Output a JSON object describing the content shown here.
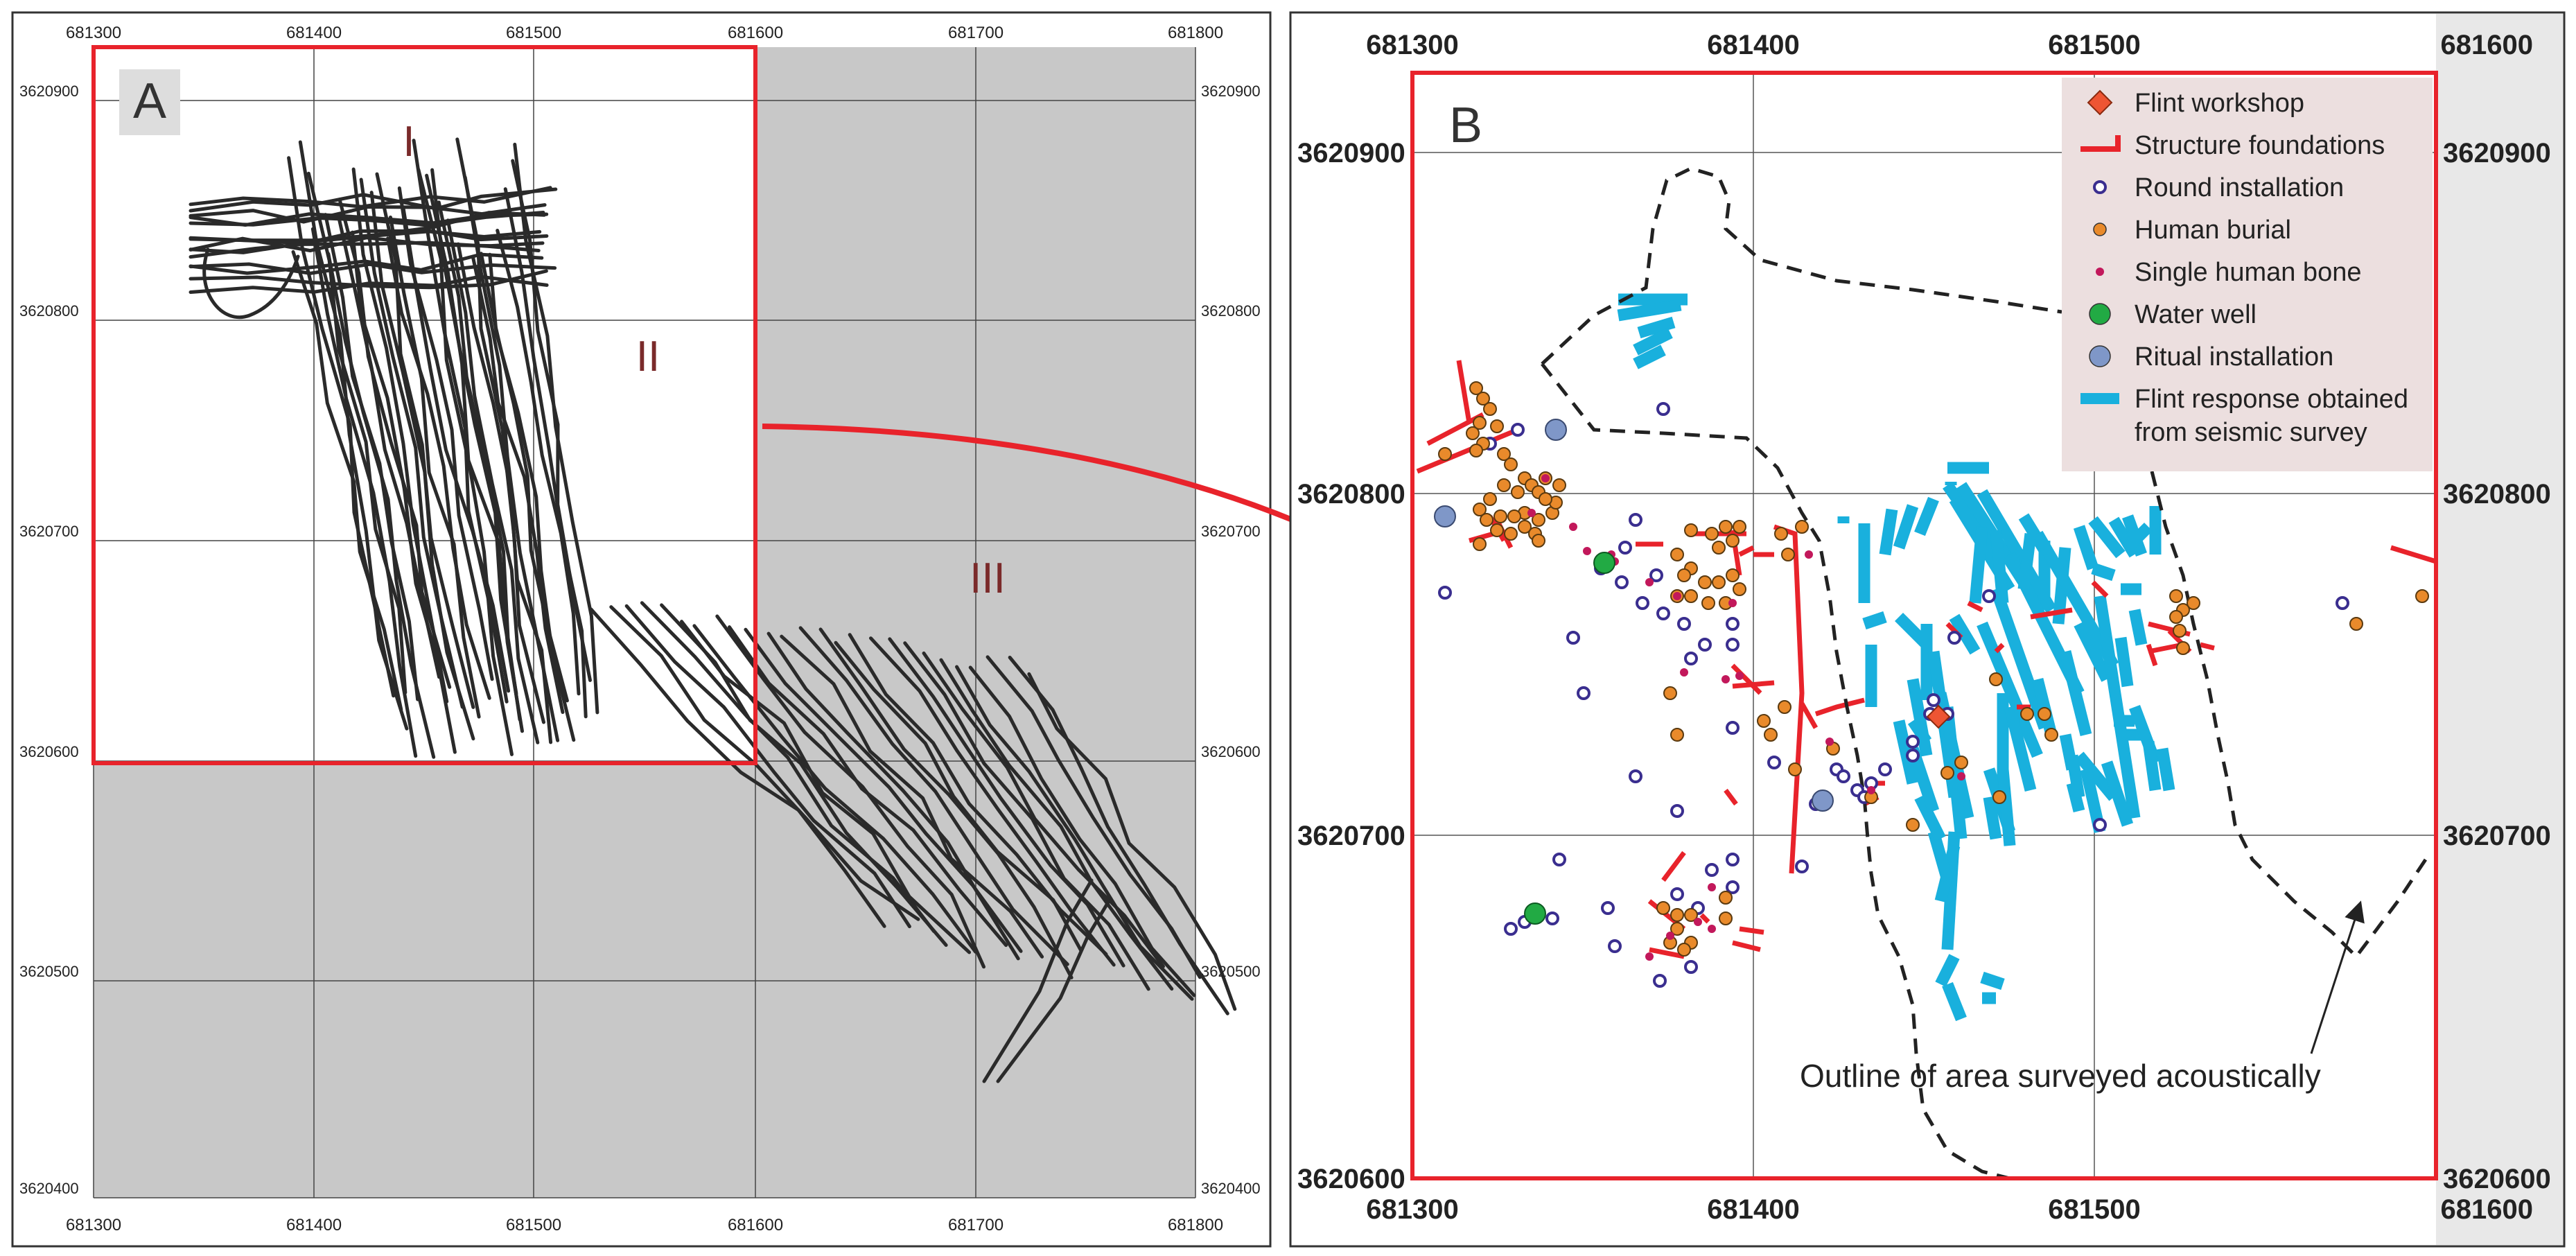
{
  "panel_a": {
    "letter": "A",
    "x_ticks": [
      "681300",
      "681400",
      "681500",
      "681600",
      "681700",
      "681800"
    ],
    "y_ticks": [
      "3620900",
      "3620800",
      "3620700",
      "3620600",
      "3620500",
      "3620400"
    ],
    "zones": [
      "I",
      "II",
      "III"
    ]
  },
  "panel_b": {
    "letter": "B",
    "x_ticks": [
      "681300",
      "681400",
      "681500",
      "681600"
    ],
    "y_ticks": [
      "3620900",
      "3620800",
      "3620700",
      "3620600"
    ],
    "annotation": "Outline of area surveyed acoustically",
    "legend": [
      {
        "label": "Flint workshop",
        "symbol": "diamond",
        "color": "#ee5533"
      },
      {
        "label": "Structure foundations",
        "symbol": "bracket",
        "color": "#e8232b"
      },
      {
        "label": "Round installation",
        "symbol": "ring",
        "color": "#3a2e8f"
      },
      {
        "label": "Human burial",
        "symbol": "dot",
        "color": "#e98a2b"
      },
      {
        "label": "Single human bone",
        "symbol": "small-dot",
        "color": "#c2185b"
      },
      {
        "label": "Water well",
        "symbol": "dot",
        "color": "#22aa44"
      },
      {
        "label": "Ritual installation",
        "symbol": "dot",
        "color": "#7f97c8"
      },
      {
        "label": "Flint response obtained",
        "label2": "from seismic survey",
        "symbol": "bar",
        "color": "#19b0dd"
      }
    ]
  },
  "colors": {
    "frame_red": "#e8232b",
    "flint_blue": "#19b0dd",
    "gray_fill": "#c8c8c8",
    "legend_bg": "#ecdfdf"
  }
}
